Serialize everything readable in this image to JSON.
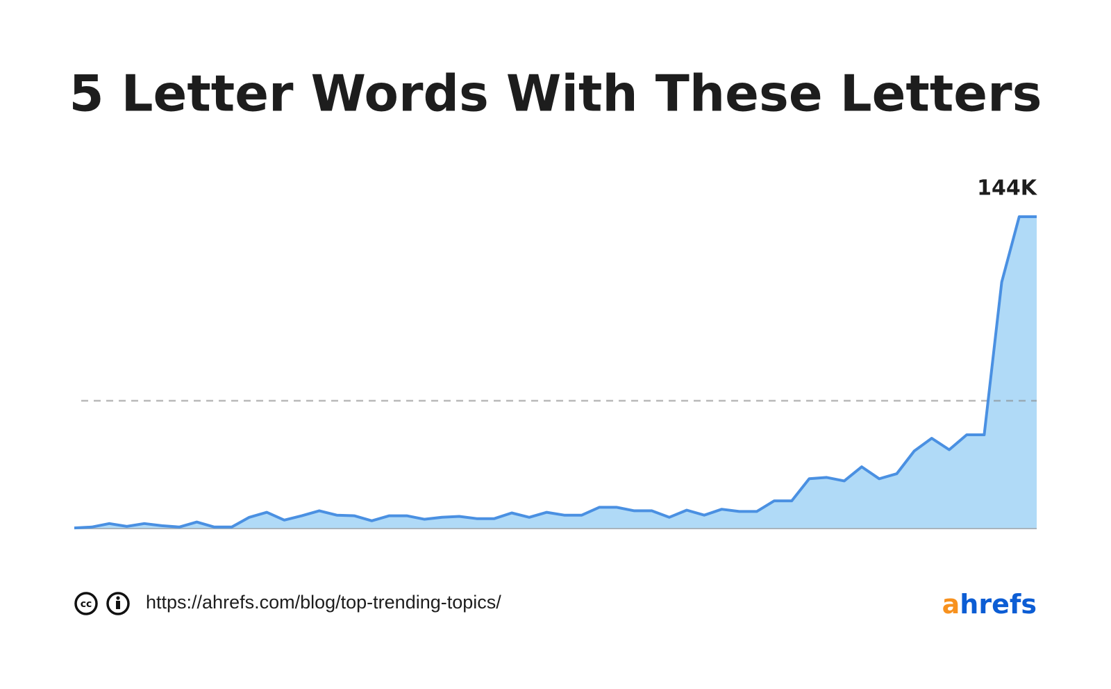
{
  "chart_data": {
    "type": "area",
    "title": "5 Letter Words With These Letters",
    "values": [
      300,
      700,
      2300,
      1000,
      2300,
      1300,
      700,
      3000,
      700,
      700,
      5200,
      7500,
      3900,
      5900,
      8200,
      6200,
      5900,
      3600,
      5900,
      5900,
      4300,
      5200,
      5600,
      4600,
      4600,
      7200,
      5200,
      7500,
      6200,
      6200,
      9800,
      9800,
      8200,
      8200,
      5200,
      8500,
      6200,
      8900,
      7900,
      7900,
      12800,
      12800,
      23000,
      23600,
      22000,
      28500,
      23000,
      25300,
      35800,
      41700,
      36400,
      43300,
      43300,
      113800,
      144000,
      144000
    ],
    "value_labels": [
      null,
      null,
      null,
      null,
      null,
      null,
      null,
      null,
      null,
      null,
      null,
      null,
      null,
      null,
      null,
      null,
      null,
      null,
      null,
      null,
      null,
      null,
      null,
      null,
      null,
      null,
      null,
      null,
      null,
      null,
      null,
      null,
      null,
      null,
      null,
      null,
      null,
      null,
      null,
      null,
      null,
      null,
      null,
      null,
      null,
      null,
      null,
      null,
      null,
      null,
      null,
      null,
      null,
      null,
      null,
      "144K"
    ],
    "color": "#4a90e2",
    "fill_color": "#b0daf7",
    "ylim": [
      0,
      144000
    ],
    "reference_line": 59000
  },
  "footer": {
    "url": "https://ahrefs.com/blog/top-trending-topics/",
    "brand": "ahrefs"
  }
}
